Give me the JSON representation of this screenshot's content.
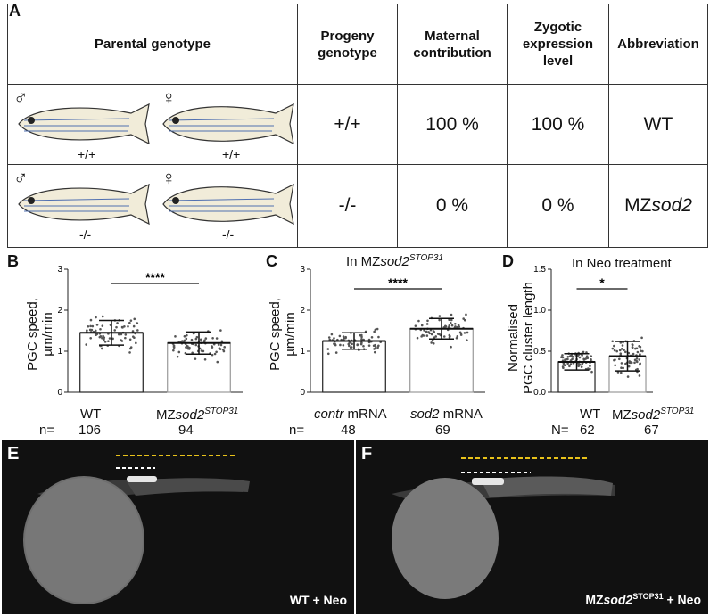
{
  "panelA": {
    "label": "A",
    "headers": {
      "parental": "Parental genotype",
      "progeny": [
        "Progeny",
        "genotype"
      ],
      "maternal": [
        "Maternal",
        "contribution"
      ],
      "zygotic": [
        "Zygotic",
        "expression",
        "level"
      ],
      "abbrev": "Abbreviation"
    },
    "rows": [
      {
        "male_symbol": "♂",
        "female_symbol": "♀",
        "male_geno": "+/+",
        "female_geno": "+/+",
        "progeny": "+/+",
        "maternal": "100 %",
        "zygotic": "100 %",
        "abbrev": "WT",
        "abbrev_italic": ""
      },
      {
        "male_symbol": "♂",
        "female_symbol": "♀",
        "male_geno": "-/-",
        "female_geno": "-/-",
        "progeny": "-/-",
        "maternal": "0 %",
        "zygotic": "0 %",
        "abbrev": "MZ",
        "abbrev_italic": "sod2"
      }
    ]
  },
  "chart_data": [
    {
      "id": "B",
      "type": "bar",
      "title": "",
      "ylabel": "PGC speed, µm/min",
      "ylim": [
        0,
        3
      ],
      "yticks": [
        0,
        1,
        2,
        3
      ],
      "categories": [
        "WT",
        "MZsod2STOP31"
      ],
      "values": [
        1.45,
        1.2
      ],
      "sd": [
        0.3,
        0.27
      ],
      "n_label": "n=",
      "n": [
        "106",
        "94"
      ],
      "significance": "****"
    },
    {
      "id": "C",
      "type": "bar",
      "title": "In MZsod2STOP31",
      "ylabel": "PGC speed, µm/min",
      "ylim": [
        0,
        3
      ],
      "yticks": [
        0,
        1,
        2,
        3
      ],
      "categories": [
        "contr mRNA",
        "sod2 mRNA"
      ],
      "values": [
        1.25,
        1.55
      ],
      "sd": [
        0.2,
        0.25
      ],
      "n_label": "n=",
      "n": [
        "48",
        "69"
      ],
      "significance": "****"
    },
    {
      "id": "D",
      "type": "bar",
      "title": "In Neo treatment",
      "ylabel": "Normalised PGC cluster length",
      "ylim": [
        0,
        1.5
      ],
      "yticks": [
        0.0,
        0.5,
        1.0,
        1.5
      ],
      "categories": [
        "WT",
        "MZsod2STOP31"
      ],
      "values": [
        0.37,
        0.44
      ],
      "sd": [
        0.1,
        0.18
      ],
      "n_label": "N=",
      "n": [
        "62",
        "67"
      ],
      "significance": "*"
    }
  ],
  "chart_text": {
    "B": {
      "label": "B",
      "ylabel": [
        "PGC speed,",
        "µm/min"
      ],
      "cat1": "WT",
      "cat2_pre": "MZ",
      "cat2_it": "sod2",
      "cat2_sup": "STOP31",
      "n_label": "n=",
      "n1": "106",
      "n2": "94",
      "sig": "****"
    },
    "C": {
      "label": "C",
      "title_pre": "In MZ",
      "title_it": "sod2",
      "title_sup": "STOP31",
      "ylabel": [
        "PGC speed,",
        "µm/min"
      ],
      "cat1_it": "contr",
      "cat1_rest": " mRNA",
      "cat2_it": "sod2",
      "cat2_rest": " mRNA",
      "n_label": "n=",
      "n1": "48",
      "n2": "69",
      "sig": "****"
    },
    "D": {
      "label": "D",
      "title": "In Neo treatment",
      "ylabel": [
        "Normalised",
        "PGC cluster length"
      ],
      "cat1": "WT",
      "cat2_pre": "MZ",
      "cat2_it": "sod2",
      "cat2_sup": "STOP31",
      "n_label": "N=",
      "n1": "62",
      "n2": "67",
      "sig": "*"
    }
  },
  "panelE": {
    "label": "E",
    "caption": "WT + Neo"
  },
  "panelF": {
    "label": "F",
    "caption_pre": "MZ",
    "caption_it": "sod2",
    "caption_sup": "STOP31",
    "caption_post": " + Neo"
  },
  "colors": {
    "yellow_line": "#e8c21a",
    "white_line": "#ffffff",
    "panel_bg": "#111111"
  }
}
